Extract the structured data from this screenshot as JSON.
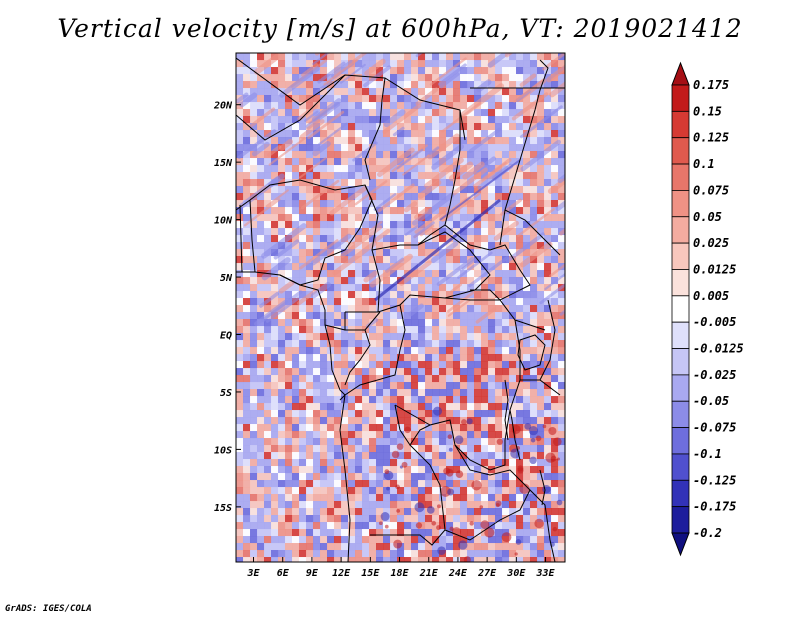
{
  "title": "Vertical velocity [m/s] at 600hPa, VT: 2019021412",
  "credit": "GrADS: IGES/COLA",
  "map": {
    "lat_labels": [
      "20N",
      "15N",
      "10N",
      "5N",
      "EQ",
      "5S",
      "10S",
      "15S"
    ],
    "lat_values": [
      20,
      15,
      10,
      5,
      0,
      -5,
      -10,
      -15
    ],
    "lon_labels": [
      "3E",
      "6E",
      "9E",
      "12E",
      "15E",
      "18E",
      "21E",
      "24E",
      "27E",
      "30E",
      "33E"
    ],
    "lon_values": [
      3,
      6,
      9,
      12,
      15,
      18,
      21,
      24,
      27,
      30,
      33
    ],
    "lat_range": [
      -19.8,
      24.5
    ],
    "lon_range": [
      1.2,
      35.0
    ]
  },
  "colorbar": {
    "labels": [
      "0.175",
      "0.15",
      "0.125",
      "0.1",
      "0.075",
      "0.05",
      "0.025",
      "0.0125",
      "0.005",
      "-0.005",
      "-0.0125",
      "-0.025",
      "-0.05",
      "-0.075",
      "-0.1",
      "-0.125",
      "-0.175",
      "-0.2"
    ],
    "colors": [
      "#a50f15",
      "#c21a1a",
      "#d63a33",
      "#e05a4e",
      "#e8766a",
      "#ef9285",
      "#f4aca0",
      "#f8c7bd",
      "#fbe2dc",
      "#ffffff",
      "#dfe0fb",
      "#c6c6f6",
      "#a9a9f0",
      "#8c8ce8",
      "#6e6edd",
      "#5050ce",
      "#3232b8",
      "#1d1d9c",
      "#101080"
    ]
  }
}
